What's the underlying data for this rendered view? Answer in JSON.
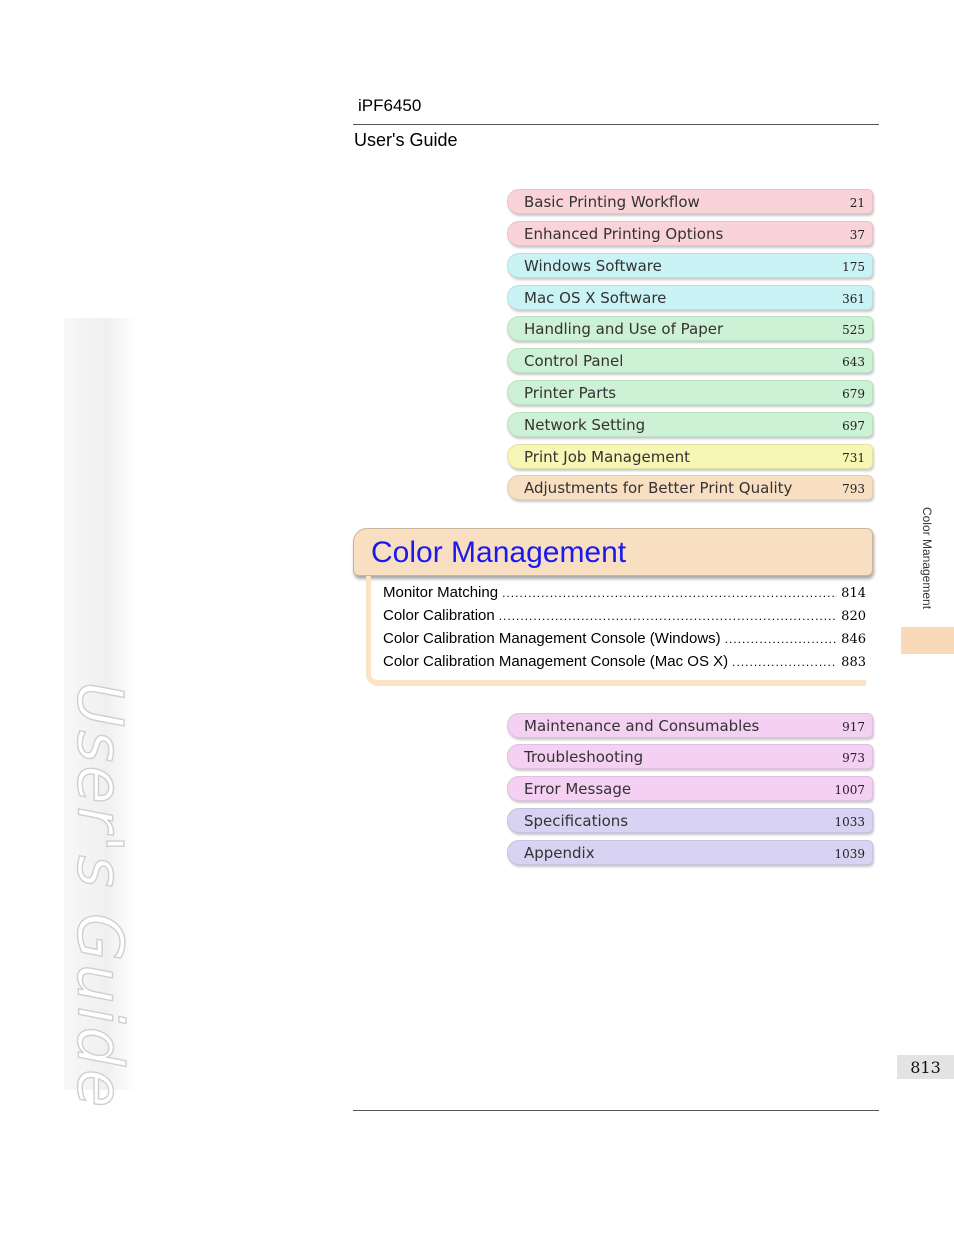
{
  "header": {
    "model": "iPF6450",
    "guide_title": "User's Guide"
  },
  "watermark": "User's Guide",
  "chapters_before": [
    {
      "title": "Basic Printing Workflow",
      "page": "21",
      "color": "#f9d3d8"
    },
    {
      "title": "Enhanced Printing Options",
      "page": "37",
      "color": "#f9d3d8"
    },
    {
      "title": "Windows Software",
      "page": "175",
      "color": "#c9f3f5"
    },
    {
      "title": "Mac OS X Software",
      "page": "361",
      "color": "#c9f3f5"
    },
    {
      "title": "Handling and Use of Paper",
      "page": "525",
      "color": "#cdf1d4"
    },
    {
      "title": "Control Panel",
      "page": "643",
      "color": "#cdf1d4"
    },
    {
      "title": "Printer Parts",
      "page": "679",
      "color": "#cdf1d4"
    },
    {
      "title": "Network Setting",
      "page": "697",
      "color": "#cdf1d4"
    },
    {
      "title": "Print Job Management",
      "page": "731",
      "color": "#f8f6b4"
    },
    {
      "title": "Adjustments for Better Print Quality",
      "page": "793",
      "color": "#f9dfc1"
    }
  ],
  "current_chapter": {
    "title": "Color Management",
    "color": "#f9dfc1",
    "sections": [
      {
        "title": "Monitor Matching",
        "page": "814"
      },
      {
        "title": "Color Calibration",
        "page": "820"
      },
      {
        "title": "Color Calibration Management Console (Windows)",
        "page": "846"
      },
      {
        "title": "Color Calibration Management Console (Mac OS X)",
        "page": "883"
      }
    ]
  },
  "chapters_after": [
    {
      "title": "Maintenance and Consumables",
      "page": "917",
      "color": "#f4d0f2"
    },
    {
      "title": "Troubleshooting",
      "page": "973",
      "color": "#f4d0f2"
    },
    {
      "title": "Error Message",
      "page": "1007",
      "color": "#f4d0f2"
    },
    {
      "title": "Specifications",
      "page": "1033",
      "color": "#d9d3f3"
    },
    {
      "title": "Appendix",
      "page": "1039",
      "color": "#d9d3f3"
    }
  ],
  "side_tab": {
    "label": "Color Management",
    "color": "#f8d9b8"
  },
  "page_number": "813"
}
